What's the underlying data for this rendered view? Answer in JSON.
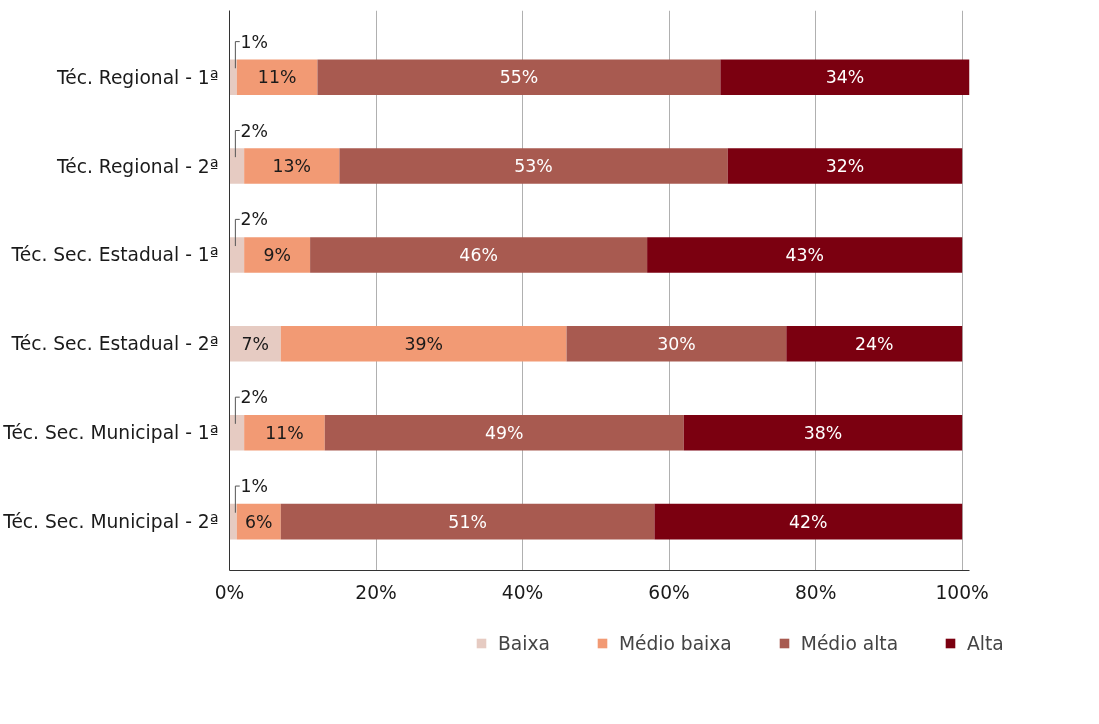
{
  "chart_data": {
    "type": "bar",
    "orientation": "horizontal",
    "stacked": true,
    "categories": [
      "Téc. Regional - 1ª",
      "Téc. Regional - 2ª",
      "Téc. Sec. Estadual - 1ª",
      "Téc. Sec. Estadual - 2ª",
      "Téc. Sec. Municipal - 1ª",
      "Téc. Sec. Municipal - 2ª"
    ],
    "series": [
      {
        "name": "Baixa",
        "color": "#e6cbc2",
        "values": [
          1,
          2,
          2,
          7,
          2,
          1
        ],
        "value_labels": [
          "1%",
          "2%",
          "2%",
          "7%",
          "2%",
          "1%"
        ]
      },
      {
        "name": "Médio baixa",
        "color": "#f29a74",
        "values": [
          11,
          13,
          9,
          39,
          11,
          6
        ],
        "value_labels": [
          "11%",
          "13%",
          "9%",
          "39%",
          "11%",
          "6%"
        ]
      },
      {
        "name": "Médio alta",
        "color": "#a85a50",
        "values": [
          55,
          53,
          46,
          30,
          49,
          51
        ],
        "value_labels": [
          "55%",
          "53%",
          "46%",
          "30%",
          "49%",
          "51%"
        ]
      },
      {
        "name": "Alta",
        "color": "#7b0010",
        "values": [
          34,
          32,
          43,
          24,
          38,
          42
        ],
        "value_labels": [
          "34%",
          "32%",
          "43%",
          "24%",
          "38%",
          "42%"
        ]
      }
    ],
    "xlim": [
      0,
      101
    ],
    "xticks": [
      {
        "value": 0,
        "label": "0%"
      },
      {
        "value": 20,
        "label": "20%"
      },
      {
        "value": 40,
        "label": "40%"
      },
      {
        "value": 60,
        "label": "60%"
      },
      {
        "value": 80,
        "label": "80%"
      },
      {
        "value": 100,
        "label": "100%"
      }
    ],
    "grid": "x",
    "legend": "bottom"
  }
}
